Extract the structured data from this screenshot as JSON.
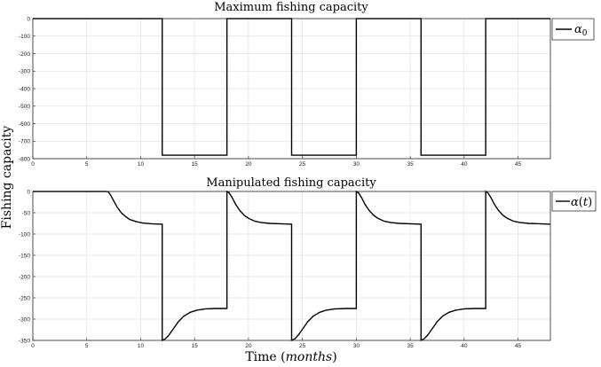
{
  "ylabel": "Fishing capacity",
  "xlabel": "Time (months)",
  "xlabel_prefix": "Time (",
  "xlabel_unit": "months",
  "xlabel_suffix": ")",
  "chart_data": [
    {
      "type": "line",
      "title": "Maximum fishing capacity",
      "xlim": [
        0,
        48
      ],
      "ylim": [
        -800,
        0
      ],
      "xticks": [
        0,
        5,
        10,
        15,
        20,
        25,
        30,
        35,
        40,
        45
      ],
      "yticks": [
        0,
        -100,
        -200,
        -300,
        -400,
        -500,
        -600,
        -700,
        -800
      ],
      "grid": true,
      "legend_placement": "outside-top-right",
      "series": [
        {
          "name": "α0",
          "color": "#000000",
          "x": [
            0,
            12,
            12,
            18,
            18,
            24,
            24,
            30,
            30,
            36,
            36,
            42,
            42,
            48
          ],
          "y": [
            0,
            0,
            -780,
            -780,
            0,
            0,
            -780,
            -780,
            0,
            0,
            -780,
            -780,
            0,
            0
          ]
        }
      ]
    },
    {
      "type": "line",
      "title": "Manipulated fishing capacity",
      "xlim": [
        0,
        48
      ],
      "ylim": [
        -350,
        0
      ],
      "xticks": [
        0,
        5,
        10,
        15,
        20,
        25,
        30,
        35,
        40,
        45
      ],
      "yticks": [
        0,
        -50,
        -100,
        -150,
        -200,
        -250,
        -300,
        -350
      ],
      "grid": true,
      "legend_placement": "outside-top-right",
      "series": [
        {
          "name": "α(t)",
          "color": "#000000",
          "x": [
            0,
            6.8,
            7.0,
            7.2,
            7.5,
            7.8,
            8.2,
            8.6,
            9.0,
            9.6,
            10.2,
            11.0,
            12.0,
            12.0,
            12.3,
            12.6,
            13.0,
            13.5,
            14.0,
            14.6,
            15.2,
            16.0,
            17.0,
            18.0,
            18.0,
            18.2,
            18.5,
            18.8,
            19.2,
            19.6,
            20.0,
            20.6,
            21.2,
            22.0,
            23.0,
            24.0,
            24.0,
            24.3,
            24.6,
            25.0,
            25.5,
            26.0,
            26.6,
            27.2,
            28.0,
            29.0,
            30.0,
            30.0,
            30.2,
            30.5,
            30.8,
            31.2,
            31.6,
            32.0,
            32.6,
            33.2,
            34.0,
            35.0,
            36.0,
            36.0,
            36.3,
            36.6,
            37.0,
            37.5,
            38.0,
            38.6,
            39.2,
            40.0,
            41.0,
            42.0,
            42.0,
            42.2,
            42.5,
            42.8,
            43.2,
            43.6,
            44.0,
            44.6,
            45.2,
            46.0,
            47.0,
            48.0
          ],
          "y": [
            0,
            0,
            -1,
            -8,
            -22,
            -36,
            -50,
            -59,
            -66,
            -71,
            -74,
            -76,
            -77,
            -350,
            -346,
            -338,
            -324,
            -306,
            -293,
            -284,
            -279,
            -276,
            -275,
            -275,
            0,
            -3,
            -15,
            -30,
            -45,
            -56,
            -63,
            -70,
            -73,
            -75,
            -76,
            -77,
            -350,
            -346,
            -338,
            -324,
            -306,
            -293,
            -284,
            -279,
            -276,
            -275,
            -275,
            0,
            -3,
            -15,
            -30,
            -45,
            -56,
            -63,
            -70,
            -73,
            -75,
            -76,
            -77,
            -350,
            -346,
            -338,
            -324,
            -306,
            -293,
            -284,
            -279,
            -276,
            -275,
            -275,
            0,
            -3,
            -15,
            -30,
            -45,
            -56,
            -63,
            -70,
            -73,
            -75,
            -76,
            -77
          ]
        }
      ]
    }
  ]
}
